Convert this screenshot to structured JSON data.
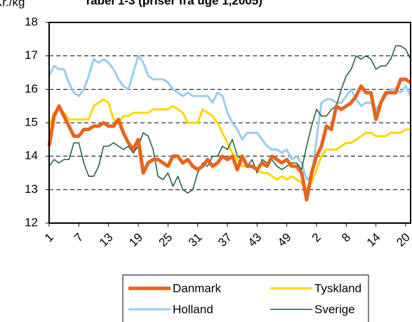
{
  "chart_data": {
    "type": "line",
    "title": "Tabel 1-3 (priser fra uge 1,2005)",
    "y_label": "Kr./kg",
    "categories": [
      "1",
      null,
      null,
      null,
      null,
      null,
      "7",
      null,
      null,
      null,
      null,
      null,
      "13",
      null,
      null,
      null,
      null,
      null,
      "19",
      null,
      null,
      null,
      null,
      null,
      "25",
      null,
      null,
      null,
      null,
      null,
      "31",
      null,
      null,
      null,
      null,
      null,
      "37",
      null,
      null,
      null,
      null,
      null,
      "43",
      null,
      null,
      null,
      null,
      null,
      "49",
      null,
      null,
      null,
      null,
      null,
      "2",
      null,
      null,
      null,
      null,
      null,
      "8",
      null,
      null,
      null,
      null,
      null,
      "14",
      null,
      null,
      null,
      null,
      null,
      "20",
      null
    ],
    "series": [
      {
        "name": "Danmark",
        "color": "#e8641c",
        "width": 5,
        "values": [
          14.3,
          15.2,
          15.5,
          15.2,
          14.9,
          14.6,
          14.6,
          14.8,
          14.8,
          14.9,
          14.9,
          15.0,
          14.9,
          14.9,
          15.1,
          14.7,
          14.4,
          14.2,
          14.5,
          13.5,
          13.8,
          13.9,
          13.9,
          13.8,
          13.7,
          14.0,
          14.0,
          13.8,
          13.9,
          13.7,
          13.6,
          13.7,
          13.9,
          13.7,
          13.8,
          14.0,
          13.9,
          14.0,
          13.6,
          14.0,
          13.7,
          13.7,
          13.6,
          13.8,
          13.7,
          14.0,
          13.9,
          13.8,
          13.9,
          13.7,
          13.7,
          13.5,
          12.7,
          13.5,
          14.0,
          14.3,
          14.9,
          14.8,
          15.5,
          15.4,
          15.5,
          15.6,
          15.8,
          16.1,
          15.9,
          15.9,
          15.1,
          15.6,
          15.9,
          15.9,
          15.9,
          16.3,
          16.3,
          16.2
        ]
      },
      {
        "name": "Tyskland",
        "color": "#ffd700",
        "width": 3,
        "values": [
          14.9,
          15.3,
          15.4,
          15.3,
          15.1,
          15.1,
          15.1,
          15.1,
          15.1,
          15.5,
          15.6,
          15.7,
          15.6,
          15.1,
          15.0,
          15.2,
          15.2,
          15.3,
          15.3,
          15.3,
          15.3,
          15.4,
          15.4,
          15.4,
          15.4,
          15.5,
          15.4,
          15.3,
          15.0,
          15.0,
          15.0,
          15.4,
          15.3,
          15.2,
          15.0,
          14.7,
          14.4,
          14.1,
          13.9,
          13.7,
          13.7,
          13.7,
          13.6,
          13.5,
          13.5,
          13.4,
          13.3,
          13.4,
          13.3,
          13.4,
          13.3,
          13.2,
          13.0,
          13.2,
          13.6,
          14.0,
          14.2,
          14.2,
          14.2,
          14.3,
          14.4,
          14.4,
          14.5,
          14.6,
          14.7,
          14.7,
          14.6,
          14.6,
          14.6,
          14.7,
          14.7,
          14.7,
          14.8,
          14.8
        ]
      },
      {
        "name": "Holland",
        "color": "#99ccee",
        "width": 3,
        "values": [
          16.4,
          16.7,
          16.6,
          16.6,
          16.2,
          15.9,
          15.8,
          16.0,
          16.4,
          16.9,
          16.8,
          16.9,
          16.8,
          16.6,
          16.3,
          16.1,
          16.0,
          16.5,
          17.0,
          16.8,
          16.4,
          16.3,
          16.3,
          16.3,
          16.2,
          16.0,
          15.9,
          15.8,
          15.9,
          15.8,
          15.8,
          15.8,
          15.8,
          15.6,
          15.9,
          15.8,
          15.3,
          15.0,
          14.8,
          14.5,
          14.7,
          14.7,
          14.7,
          14.5,
          14.3,
          14.2,
          14.2,
          14.1,
          14.2,
          13.9,
          14.0,
          13.8,
          13.3,
          13.4,
          14.5,
          15.6,
          15.7,
          15.7,
          15.6,
          15.6,
          15.8,
          16.0,
          15.7,
          15.5,
          15.6,
          15.6,
          15.4,
          15.6,
          15.8,
          16.0,
          16.0,
          15.9,
          16.1,
          15.8
        ]
      },
      {
        "name": "Sverige",
        "color": "#1a5c2e",
        "width": 1.5,
        "values": [
          13.7,
          13.9,
          13.8,
          13.9,
          13.9,
          14.4,
          14.4,
          13.8,
          13.4,
          13.4,
          13.7,
          14.3,
          14.3,
          14.4,
          14.3,
          14.2,
          14.3,
          14.1,
          14.3,
          14.7,
          14.6,
          14.2,
          13.4,
          13.3,
          13.5,
          13.1,
          13.4,
          13.0,
          12.9,
          13.0,
          13.5,
          13.8,
          13.7,
          14.0,
          14.0,
          14.3,
          14.2,
          14.5,
          14.0,
          13.9,
          13.7,
          13.9,
          13.5,
          13.9,
          13.8,
          13.9,
          13.7,
          13.6,
          13.7,
          13.8,
          13.8,
          13.6,
          14.3,
          14.9,
          15.4,
          15.2,
          15.2,
          15.4,
          15.5,
          16.0,
          16.4,
          16.6,
          17.0,
          16.9,
          17.0,
          16.9,
          16.6,
          16.7,
          16.7,
          16.9,
          17.3,
          17.3,
          17.2,
          16.9
        ]
      }
    ],
    "ylim": [
      12,
      18
    ],
    "yticks": [
      12,
      13,
      14,
      15,
      16,
      17,
      18
    ],
    "grid": true,
    "legend": "bottom"
  }
}
